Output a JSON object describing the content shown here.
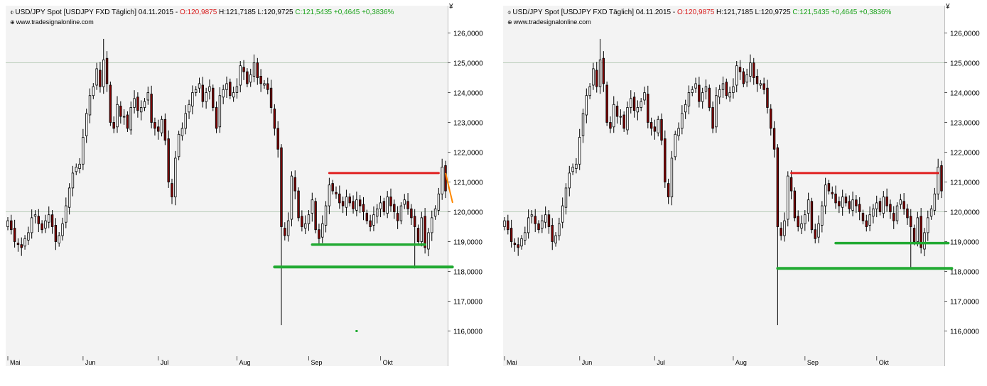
{
  "header": {
    "symbol_icon": "candlestick-symbol-icon",
    "title": "USD/JPY Spot [USDJPY FXD  Täglich] 04.11.2015 - ",
    "open": "O:120,9875",
    "high": "H:121,7185",
    "low": "L:120,9725",
    "close_change": "C:121,5435 +0,4645 +0,3836%",
    "source_icon": "globe-icon",
    "source": "www.tradesignalonline.com",
    "currency_symbol": "¥"
  },
  "colors": {
    "up": "#ffffff",
    "down": "#800000",
    "outline": "#000000",
    "resistance": "#e02020",
    "support": "#22aa33",
    "arrow": "#ff8800"
  },
  "chart_data": [
    {
      "type": "candlestick",
      "title": "USD/JPY Spot [USDJPY FXD  Täglich] 04.11.2015",
      "ylim": [
        115.0,
        126.5
      ],
      "yticks": [
        "116,0000",
        "117,0000",
        "118,0000",
        "119,0000",
        "120,0000",
        "121,0000",
        "122,0000",
        "123,0000",
        "124,0000",
        "125,0000",
        "126,0000"
      ],
      "xticks": [
        {
          "label": "Mai",
          "index": 0
        },
        {
          "label": "Jun",
          "index": 22
        },
        {
          "label": "Jul",
          "index": 44
        },
        {
          "label": "Aug",
          "index": 67
        },
        {
          "label": "Sep",
          "index": 88
        },
        {
          "label": "Okt",
          "index": 109
        }
      ],
      "grid": {
        "horizontal_levels": [
          120.0,
          125.0
        ]
      },
      "closes": [
        119.7,
        119.4,
        119.0,
        118.9,
        118.8,
        119.1,
        119.3,
        119.8,
        119.9,
        119.6,
        119.4,
        119.7,
        119.9,
        119.5,
        119.0,
        119.2,
        119.6,
        120.2,
        120.8,
        121.3,
        121.5,
        121.6,
        122.5,
        123.3,
        123.9,
        124.2,
        124.8,
        124.2,
        125.1,
        124.3,
        123.0,
        122.8,
        123.6,
        123.2,
        123.2,
        122.8,
        123.5,
        123.8,
        123.4,
        123.5,
        123.7,
        124.0,
        123.0,
        122.8,
        122.7,
        123.1,
        122.4,
        121.0,
        120.5,
        121.8,
        122.6,
        122.8,
        123.3,
        123.6,
        124.0,
        124.1,
        124.3,
        123.7,
        124.0,
        124.2,
        123.5,
        122.8,
        123.9,
        124.1,
        124.3,
        123.9,
        124.0,
        124.2,
        124.9,
        124.7,
        124.3,
        124.6,
        125.0,
        124.5,
        124.3,
        124.3,
        124.1,
        123.5,
        122.8,
        122.1,
        119.5,
        119.2,
        119.7,
        121.2,
        120.7,
        119.8,
        119.5,
        119.6,
        119.9,
        120.4,
        119.4,
        119.1,
        119.6,
        120.2,
        120.9,
        120.7,
        120.6,
        120.3,
        120.2,
        120.5,
        120.3,
        120.1,
        120.4,
        120.2,
        120.0,
        119.7,
        119.5,
        119.9,
        120.1,
        120.3,
        120.0,
        120.5,
        120.2,
        120.0,
        119.7,
        120.2,
        120.4,
        120.1,
        119.8,
        119.5,
        119.0,
        119.8,
        118.8,
        119.3,
        119.8,
        120.1,
        120.6,
        121.5,
        120.7
      ],
      "panels": [
        {
          "resistance": {
            "level": 121.3,
            "from_index": 94,
            "to_index": 126
          },
          "support_upper": {
            "level": 118.9,
            "from_index": 89,
            "to_index": 122
          },
          "support_lower": {
            "level": 118.15,
            "from_index": 78,
            "to_index": 130
          },
          "arrow": {
            "from": 121.3,
            "to": 120.3
          },
          "marker": {
            "value": 116.0,
            "index": 102
          }
        },
        {
          "resistance": {
            "level": 121.3,
            "from_index": 84,
            "to_index": 127
          },
          "support_upper": {
            "level": 118.95,
            "from_index": 97,
            "to_index": 130
          },
          "support_lower": {
            "level": 118.1,
            "from_index": 80,
            "to_index": 131
          }
        }
      ]
    }
  ]
}
